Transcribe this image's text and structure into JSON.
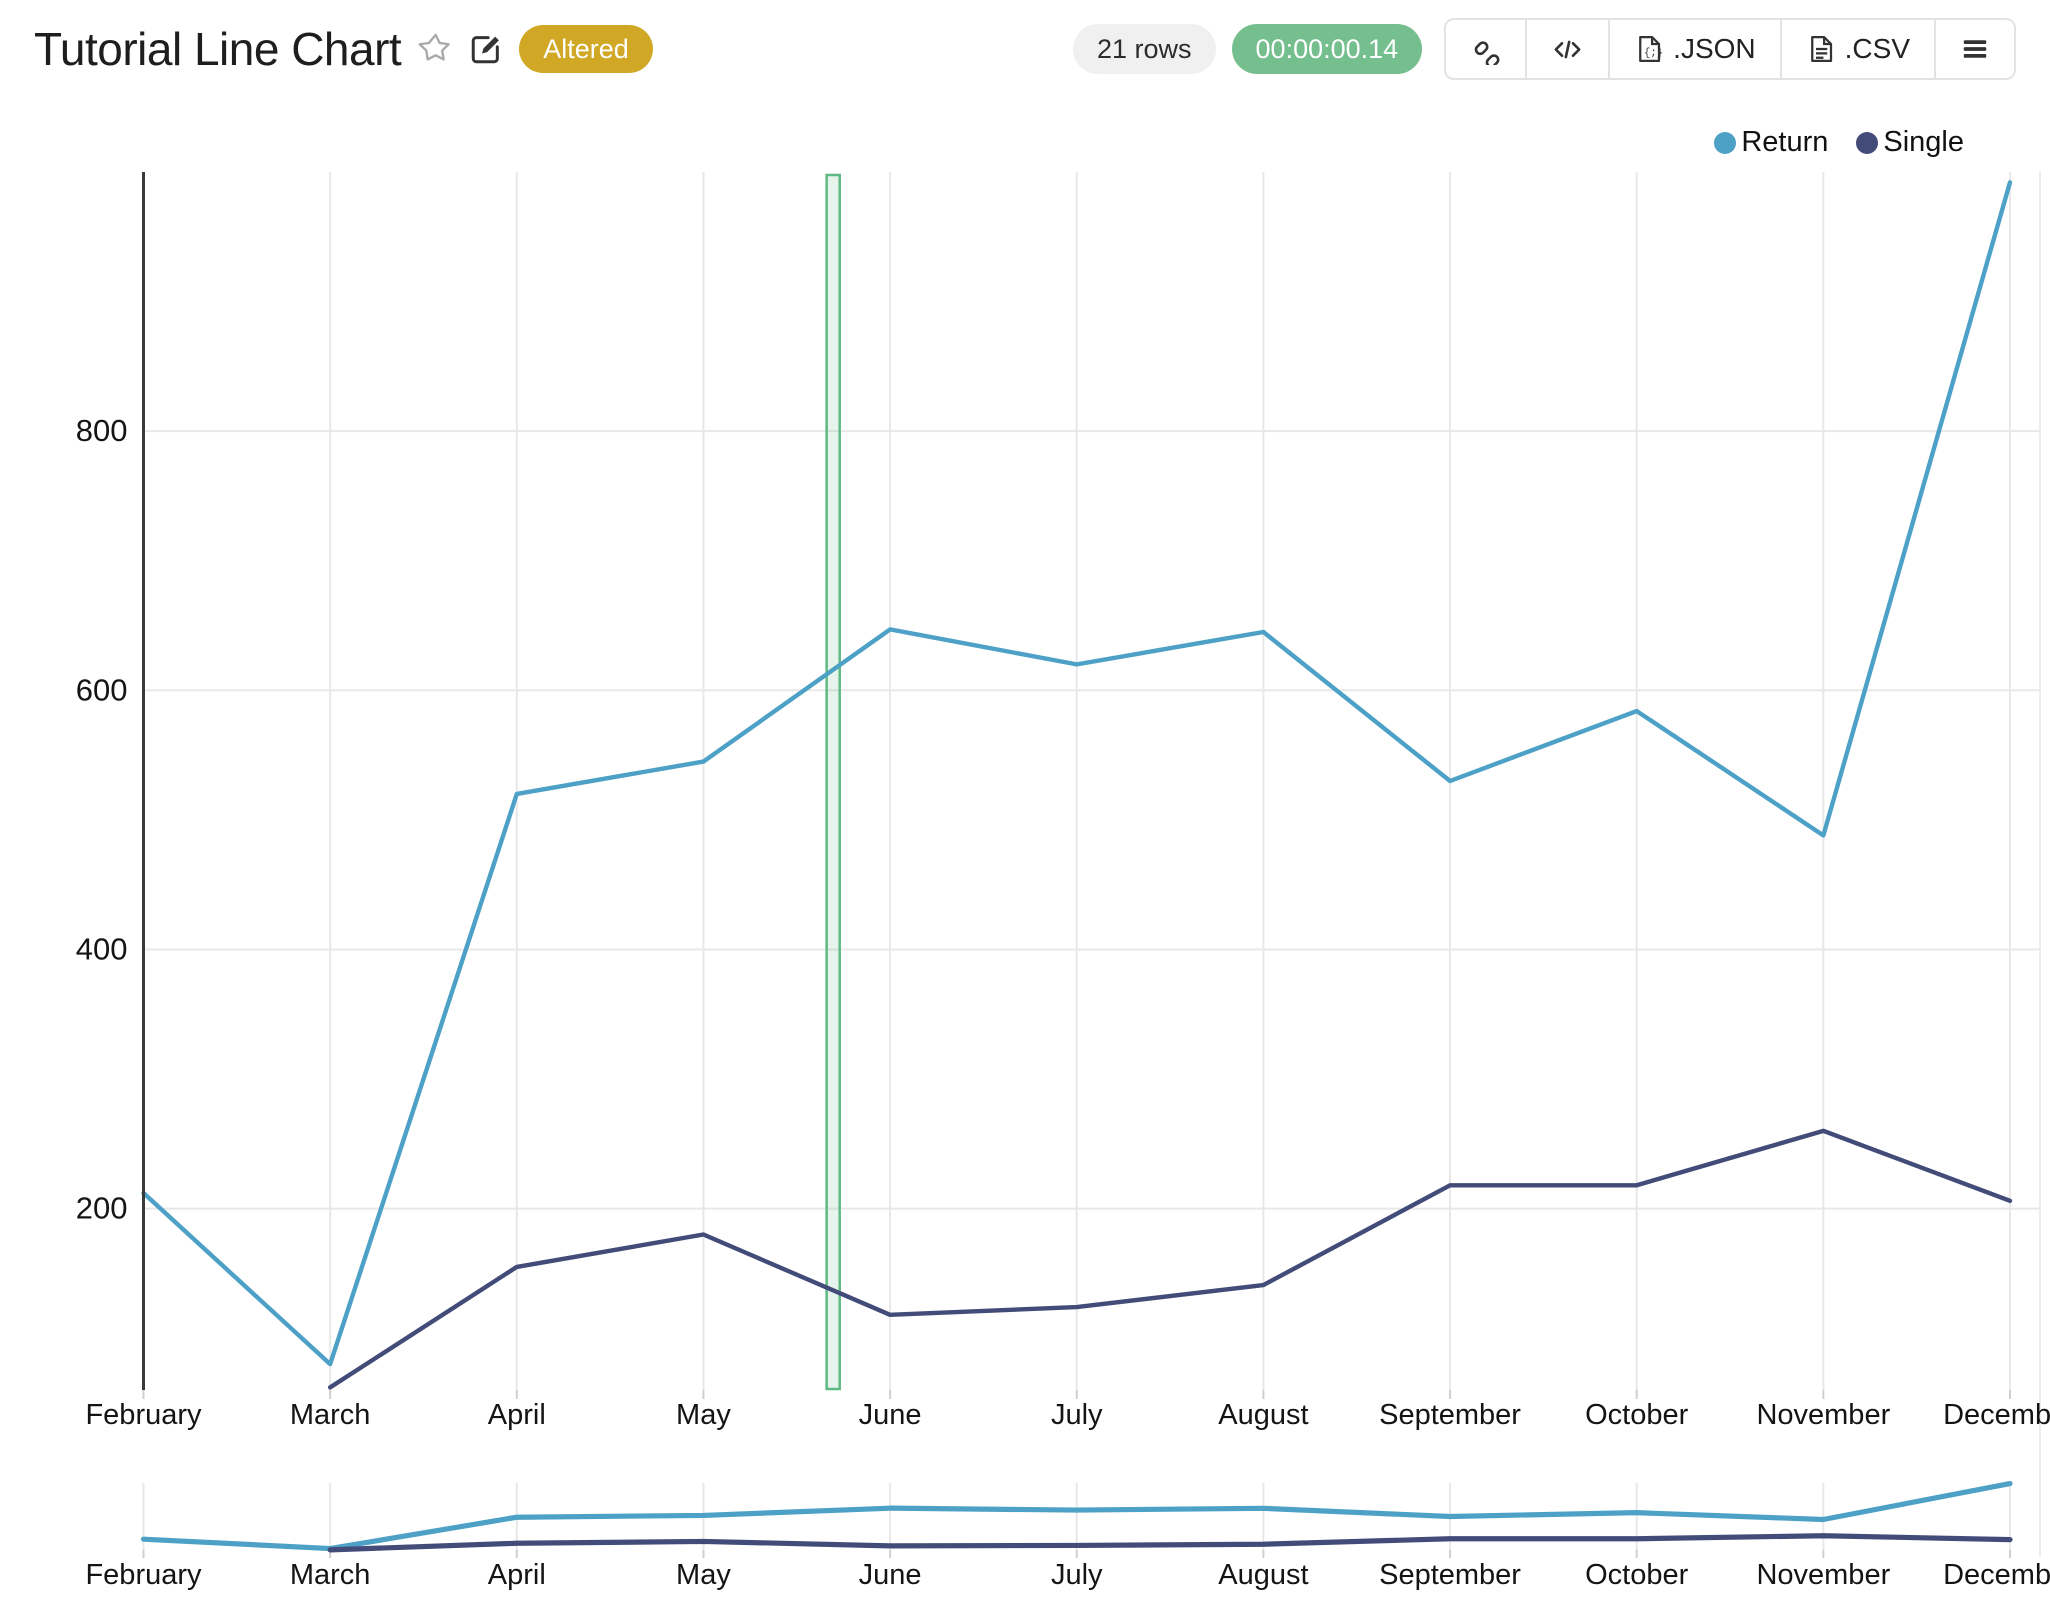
{
  "header": {
    "title": "Tutorial Line Chart",
    "badge": "Altered",
    "rows_label": "21 rows",
    "timer": "00:00:00.14",
    "toolbar": {
      "buttons": [
        {
          "icon": "link-icon"
        },
        {
          "icon": "code-icon"
        },
        {
          "icon": "json-file-icon",
          "label": ".JSON"
        },
        {
          "icon": "csv-file-icon",
          "label": ".CSV"
        },
        {
          "icon": "menu-icon"
        }
      ]
    }
  },
  "legend": [
    {
      "label": "Return",
      "color": "#4DA1C6"
    },
    {
      "label": "Single",
      "color": "#434C78"
    }
  ],
  "chart_data": {
    "type": "line",
    "title": "Tutorial Line Chart",
    "categories": [
      "February",
      "March",
      "April",
      "May",
      "June",
      "July",
      "August",
      "September",
      "October",
      "November",
      "December"
    ],
    "series": [
      {
        "name": "Return",
        "color": "#4DA1C6",
        "values": [
          212,
          80,
          520,
          545,
          647,
          620,
          645,
          530,
          584,
          488,
          992
        ]
      },
      {
        "name": "Single",
        "color": "#434C78",
        "values": [
          null,
          62,
          155,
          180,
          118,
          124,
          141,
          218,
          218,
          260,
          206
        ]
      }
    ],
    "ylim": [
      60,
      1000
    ],
    "yticks": [
      200,
      400,
      600,
      800
    ],
    "grid": true,
    "legend_position": "top-right",
    "annotation_band": {
      "type": "vertical-interval",
      "between": [
        "May",
        "June"
      ],
      "start_month_frac": 3.66,
      "end_month_frac": 3.73,
      "fill": "#6CBD8B",
      "fill_opacity": 0.16,
      "border": "#5FB983"
    },
    "has_range_selector_minimap": true
  }
}
